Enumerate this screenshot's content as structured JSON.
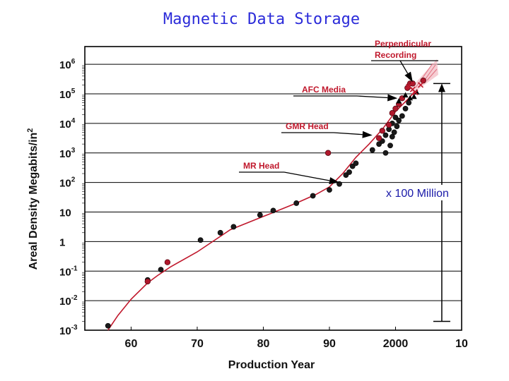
{
  "chart_data": {
    "type": "scatter",
    "title": "Magnetic Data Storage",
    "xlabel": "Production Year",
    "ylabel": "Areal Density Megabits/in",
    "ylabel_sup": "2",
    "xlim": [
      1953,
      2010
    ],
    "ylim": [
      -3,
      6.6
    ],
    "y_scale": "log10",
    "grid": true,
    "x_ticks": [
      {
        "value": 1960,
        "label": "60"
      },
      {
        "value": 1970,
        "label": "70"
      },
      {
        "value": 1980,
        "label": "80"
      },
      {
        "value": 1990,
        "label": "90"
      },
      {
        "value": 2000,
        "label": "2000"
      },
      {
        "value": 2010,
        "label": "10"
      }
    ],
    "y_ticks": [
      {
        "value": -3,
        "base": "10",
        "sup": "-3"
      },
      {
        "value": -2,
        "base": "10",
        "sup": "-2"
      },
      {
        "value": -1,
        "base": "10",
        "sup": "-1"
      },
      {
        "value": 0,
        "base": "1",
        "sup": ""
      },
      {
        "value": 1,
        "base": "10",
        "sup": ""
      },
      {
        "value": 2,
        "base": "10",
        "sup": "2"
      },
      {
        "value": 3,
        "base": "10",
        "sup": "3"
      },
      {
        "value": 4,
        "base": "10",
        "sup": "4"
      },
      {
        "value": 5,
        "base": "10",
        "sup": "5"
      },
      {
        "value": 6,
        "base": "10",
        "sup": "6"
      }
    ],
    "trend": [
      [
        1956.5,
        -3.0
      ],
      [
        1958,
        -2.5
      ],
      [
        1960,
        -1.95
      ],
      [
        1962.5,
        -1.4
      ],
      [
        1964,
        -1.15
      ],
      [
        1966,
        -0.85
      ],
      [
        1970,
        -0.35
      ],
      [
        1975,
        0.4
      ],
      [
        1980,
        0.85
      ],
      [
        1985,
        1.3
      ],
      [
        1988,
        1.6
      ],
      [
        1990,
        1.85
      ],
      [
        1992,
        2.3
      ],
      [
        1994,
        2.85
      ],
      [
        1996,
        3.3
      ],
      [
        1998,
        3.8
      ],
      [
        2000,
        4.4
      ],
      [
        2002,
        4.85
      ],
      [
        2003,
        5.1
      ]
    ],
    "series": [
      {
        "marker": "black-circle",
        "points": [
          [
            1956.5,
            -2.85
          ],
          [
            1962.5,
            -1.3
          ],
          [
            1964.5,
            -0.95
          ],
          [
            1970.5,
            0.05
          ],
          [
            1973.5,
            0.3
          ],
          [
            1975.5,
            0.5
          ],
          [
            1979.5,
            0.9
          ],
          [
            1981.5,
            1.05
          ],
          [
            1985,
            1.3
          ],
          [
            1987.5,
            1.55
          ],
          [
            1990,
            1.75
          ],
          [
            1991.5,
            1.95
          ],
          [
            1992.5,
            2.25
          ],
          [
            1993,
            2.35
          ],
          [
            1993.5,
            2.55
          ],
          [
            1994,
            2.65
          ],
          [
            1996.5,
            3.1
          ],
          [
            1997.5,
            3.3
          ],
          [
            1998,
            3.4
          ],
          [
            1998.5,
            3.6
          ],
          [
            1998.5,
            3.0
          ],
          [
            1999,
            3.8
          ],
          [
            1999.2,
            3.25
          ],
          [
            1999.5,
            3.55
          ],
          [
            1999.5,
            4.0
          ],
          [
            1999.8,
            3.7
          ],
          [
            2000,
            4.2
          ],
          [
            2000.2,
            3.9
          ],
          [
            2000.5,
            4.1
          ],
          [
            2001,
            4.25
          ],
          [
            2001.5,
            4.5
          ],
          [
            2002,
            4.7
          ]
        ]
      },
      {
        "marker": "red-circle",
        "points": [
          [
            1962.5,
            -1.35
          ],
          [
            1965.5,
            -0.7
          ],
          [
            1989.8,
            3.0
          ],
          [
            1997.5,
            3.5
          ],
          [
            1998,
            3.75
          ],
          [
            1999,
            3.95
          ],
          [
            1999.5,
            4.35
          ],
          [
            2000,
            4.5
          ],
          [
            2000.5,
            4.65
          ],
          [
            2001,
            4.85
          ],
          [
            2001.8,
            5.2
          ],
          [
            2002.2,
            5.35
          ],
          [
            2002.6,
            5.35
          ],
          [
            2004.2,
            5.45
          ]
        ]
      },
      {
        "marker": "black-triangle",
        "points": [
          [
            2000.5,
            4.75
          ],
          [
            2001.5,
            4.95
          ],
          [
            2002.2,
            4.85
          ],
          [
            2002.8,
            4.9
          ],
          [
            2003.2,
            5.05
          ]
        ]
      },
      {
        "marker": "red-cross",
        "points": [
          [
            2002,
            5.25
          ],
          [
            2002.6,
            5.15
          ],
          [
            2003,
            5.05
          ],
          [
            2003.8,
            5.3
          ]
        ]
      }
    ],
    "annotations": [
      {
        "text": "Perpendicular",
        "text2": "Recording",
        "target": [
          2002.6,
          5.4
        ]
      },
      {
        "text": "AFC Media",
        "target": [
          2000.3,
          4.85
        ]
      },
      {
        "text": "GMR Head",
        "target": [
          1996.5,
          3.6
        ]
      },
      {
        "text": "MR Head",
        "target": [
          1991.5,
          2.0
        ]
      }
    ],
    "growth_span": {
      "x": 2007,
      "y_low": -2.7,
      "y_high": 5.35,
      "label": "x 100 Million"
    }
  }
}
